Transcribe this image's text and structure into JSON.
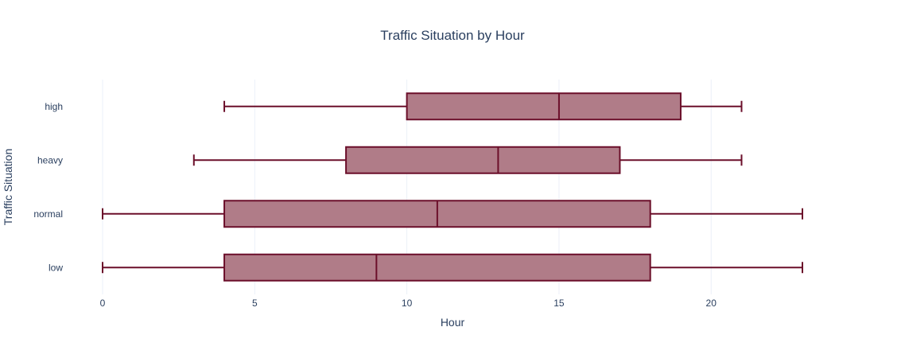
{
  "chart_data": {
    "type": "box",
    "orientation": "horizontal",
    "title": "Traffic Situation by Hour",
    "xlabel": "Hour",
    "ylabel": "Traffic Situation",
    "xlim": [
      0,
      23
    ],
    "xticks": [
      0,
      5,
      10,
      15,
      20
    ],
    "grid": true,
    "legend": "none",
    "colors": {
      "box_fill": "#b07c88",
      "box_line": "#6b0f2a",
      "grid": "#ebf0f8",
      "text": "#2a3f5f"
    },
    "categories": [
      "low",
      "normal",
      "heavy",
      "high"
    ],
    "boxes": [
      {
        "category": "low",
        "min": 0,
        "q1": 4,
        "median": 9,
        "q3": 18,
        "max": 23
      },
      {
        "category": "normal",
        "min": 0,
        "q1": 4,
        "median": 11,
        "q3": 18,
        "max": 23
      },
      {
        "category": "heavy",
        "min": 3,
        "q1": 8,
        "median": 13,
        "q3": 17,
        "max": 21
      },
      {
        "category": "high",
        "min": 4,
        "q1": 10,
        "median": 15,
        "q3": 19,
        "max": 21
      }
    ]
  }
}
